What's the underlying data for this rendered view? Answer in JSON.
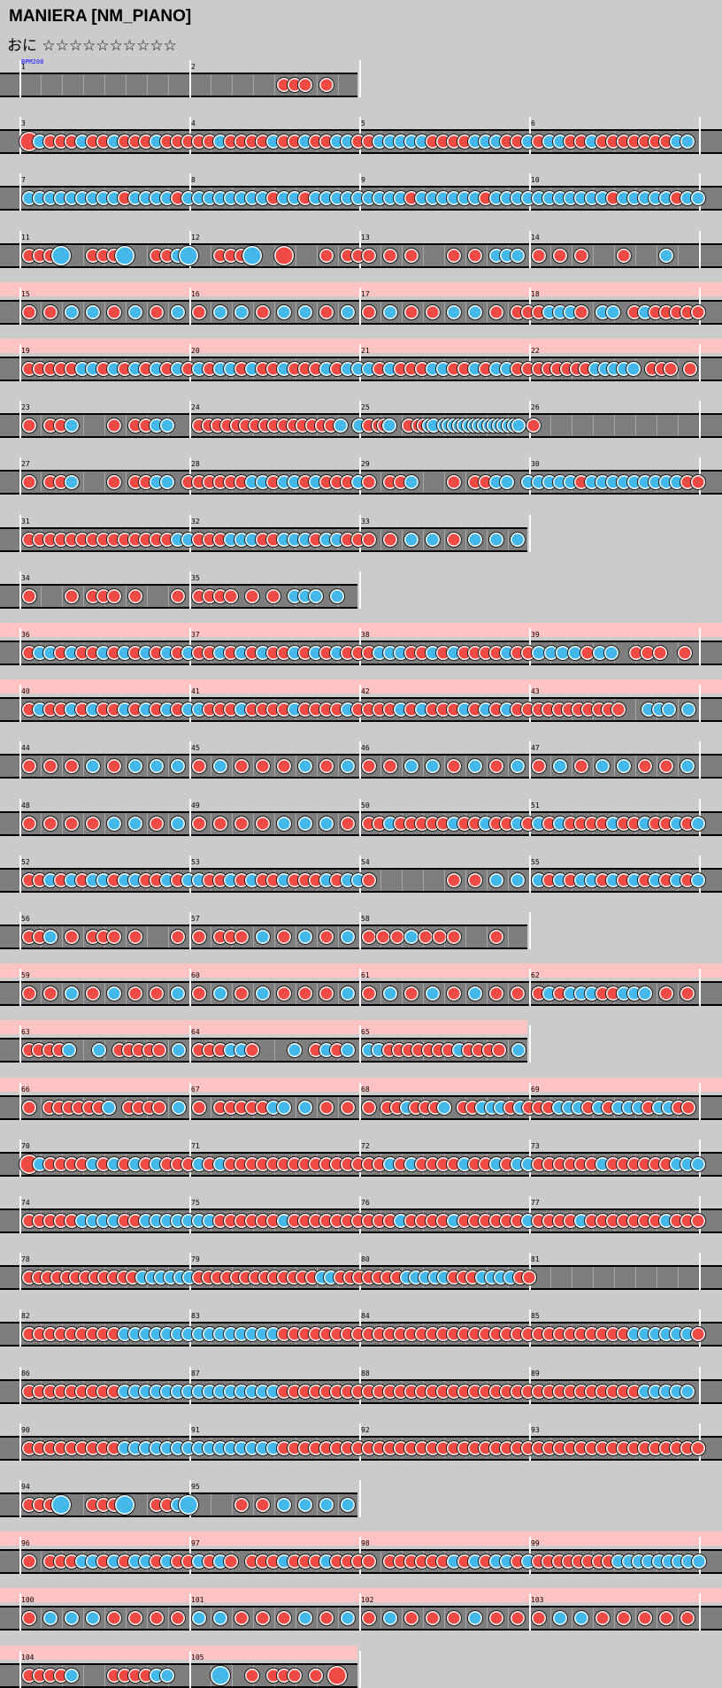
{
  "header": {
    "title": "MANIERA [NM_PIANO]",
    "course": "おに ☆☆☆☆☆☆☆☆☆☆",
    "bpm_label": "BPM208"
  },
  "colors": {
    "don": "#f04a44",
    "ka": "#45b8ea",
    "track": "#7e7e7e",
    "gogo": "#ffc3c3",
    "background": "#cbcbcb"
  },
  "rows": [
    {
      "measures": [
        1,
        2
      ],
      "gogo": false,
      "notes": "________________ ________DDD_D___"
    },
    {
      "measures": [
        3,
        4,
        5,
        6
      ],
      "gogo": false,
      "notes": "LKDDDKDDKDDDKDDD DDKDDDDKDDKDDKKD DKKKKKDDDDKKKDDK DKKDDKDDDDDDDKK_"
    },
    {
      "measures": [
        7,
        8,
        9,
        10
      ],
      "gogo": false,
      "notes": "KKKKKKKKKDKKKKDK KKKKKKKDKKDKKKKK KKKKDKKKKKKDKKKK KKKKKKKDKKKKKDKK"
    },
    {
      "measures": [
        11,
        12,
        13,
        14
      ],
      "gogo": false,
      "notes": "DDDB__DDDB__DDKB __DDDB__L___D_DD D_D_D___D_D_KKK_ DDD_D_K_"
    },
    {
      "measures": [
        15,
        16,
        17,
        18
      ],
      "gogo": true,
      "notes": "D_D_K_K_D_K_D_K_ D_K_K_D_K_K_D_K_ D_K_D_D_K_K_D_DD DKKKD_KK_DKDDDDD"
    },
    {
      "measures": [
        19,
        20,
        21,
        22
      ],
      "gogo": true,
      "notes": "DDDDDKKDKDKDKDKD KDKKDKDDKDDDKDKK KDKDDDKKDDKDKKDD DDDDDDKKKKK_DDD_D_"
    },
    {
      "measures": [
        23,
        24,
        25,
        26
      ],
      "gogo": false,
      "notes": "D_DDK___D_DDKK__ DDDDDDDDDDDDDDDK_K D_DDK___D_DDKK_KKKKKKKKKKKKKKKK__D"
    },
    {
      "measures": [
        27,
        28,
        29,
        30
      ],
      "gogo": false,
      "notes": "D_DDK___D_DDKK_D DDDDDKKDKKDKDDDK D_DDK___D_DDKK_K KKKKDKKKKKKKKKDD"
    },
    {
      "measures": [
        31,
        32,
        33
      ],
      "gogo": false,
      "notes": "DDDDDDDDDDDDDDKK DDDKKKDDKKKDKKDD D_D_K_K_D_K_K_K_"
    },
    {
      "measures": [
        34,
        35
      ],
      "gogo": false,
      "notes": "D___D_DDD_D___D_ DDDD_D_D_KKK_K__"
    },
    {
      "measures": [
        36,
        37,
        38,
        39
      ],
      "gogo": true,
      "notes": "DKKDKDDKDKDKDKDK DDKDKDKDDKDKDKDD DKKKDDKDKDDDDKDD KKKKDKK_DDD_D_"
    },
    {
      "measures": [
        40,
        41,
        42,
        43
      ],
      "gogo": true,
      "notes": "DKDDKDKDDKDKDKDK KDDDKDDDDKDDDDKD DDDKDKDDDKDKDKDD DDDDDDDDD__KKK_K_"
    },
    {
      "measures": [
        44,
        45,
        46,
        47
      ],
      "gogo": false,
      "notes": "D_D_D_K_D_K_K_K_ D_K_D_D_D_K_D_K_ D_D_K_K_D_K_D_K_ D_K_D_K_K_D_D_K_"
    },
    {
      "measures": [
        48,
        49,
        50,
        51
      ],
      "gogo": false,
      "notes": "D_D_D_D_K_K_D_K_ D_D_D_D_K_K_K_D_ DDKDDDDDKDDKDDKD KDKDDDDKDDKDDKDK"
    },
    {
      "measures": [
        52,
        53,
        54,
        55
      ],
      "gogo": false,
      "notes": "DDKDKDKKDKKDDKDK KDDKDKDDKDDDKDKK D_______D_D_K_K_ KDKDKKDKDKDKDKDK"
    },
    {
      "measures": [
        56,
        57,
        58
      ],
      "gogo": false,
      "notes": "DDK_D_DDD_D___D_ D_DDD_K_D_K_D_K_ DDDKDDD__D_K"
    },
    {
      "measures": [
        59,
        60,
        61,
        62
      ],
      "gogo": true,
      "notes": "D_D_K_D_K_D_D_K_ D_K_D_K_D_D_D_K_ D_K_D_K_D_K_D_D_ DKDKKKDDKKK_D_D_"
    },
    {
      "measures": [
        63,
        64,
        65
      ],
      "gogo": true,
      "notes": "DDDDK__K_DDDDD_K_ DDDKKD___K_DKDK_ KKDDDDDDDKDDDD_K_"
    },
    {
      "measures": [
        66,
        67,
        68,
        69
      ],
      "gogo": true,
      "notes": "D_DDDDDDK_DDDD_K_ D_DDDDDKK_K_D_D_ D_DDKDDDK_DDKKKDKD DDKKKDKDKKKDKKDD_"
    },
    {
      "measures": [
        70,
        71,
        72,
        73
      ],
      "gogo": false,
      "notes": "LKDDDDKDKDKDKDDD KDKDDDDDDDDDDDDD DDKDKDDDDKDDKDKK DDDDDDKDDDDDDKKK"
    },
    {
      "measures": [
        74,
        75,
        76,
        77
      ],
      "gogo": false,
      "notes": "DDDDDKKKKDDKKKKK KKDDDDDDKDDDDDDD DDDKDDDDKDDDDDDK DDDDKDDDDDDDKDDD"
    },
    {
      "measures": [
        78,
        79,
        80,
        81
      ],
      "gogo": false,
      "notes": "DDDDDDDDDDDDKKKKKK DDDDDDDDDDDDDKKDDD DDDDKKKKKDDDKKKKDD ________________"
    },
    {
      "measures": [
        82,
        83,
        84,
        85
      ],
      "gogo": false,
      "notes": "DDDDDDDDDKKKKKKK KKKKKKKKDDDDDDDD DDDDDDDDDDDDDDDD DDDDDDDDDKKKKKKD"
    },
    {
      "measures": [
        86,
        87,
        88,
        89
      ],
      "gogo": false,
      "notes": "DDDDDDDDDKKKKKKK KKKKKKKKDDDDDDDD DDDDDDDDDDDDDDDD DDDDDDDDDDKKKKK_"
    },
    {
      "measures": [
        90,
        91,
        92,
        93
      ],
      "gogo": false,
      "notes": "DDDDDDDDDKKKKKKK KKKKKKKKDDDDDDDD DDDDDDDDDDDDDDDD DDDDDDDDDDDDDDDD"
    },
    {
      "measures": [
        94,
        95
      ],
      "gogo": false,
      "notes": "DDDB__DDDB__DDKB __DDKKKK"
    },
    {
      "measures": [
        96,
        97,
        98,
        99
      ],
      "gogo": true,
      "notes": "D_DDDKKDKDKKDKDD KDKD_DDDKDDDKDDD D_DDDDDDKDKDKKDK DDDDDDDDKKKKKKKKK"
    },
    {
      "measures": [
        100,
        101,
        102,
        103
      ],
      "gogo": true,
      "notes": "D_K_K_K_D_D_D_D_ K_K_D_D_D_K_D_K_ D_K_D_D_D_K_D_D_ D_K_K_D_D_D_D_D_"
    },
    {
      "measures": [
        104,
        105
      ],
      "gogo": true,
      "notes": "DDDDK___DDDDKK__ __B__D_DDD_D_L__"
    }
  ]
}
